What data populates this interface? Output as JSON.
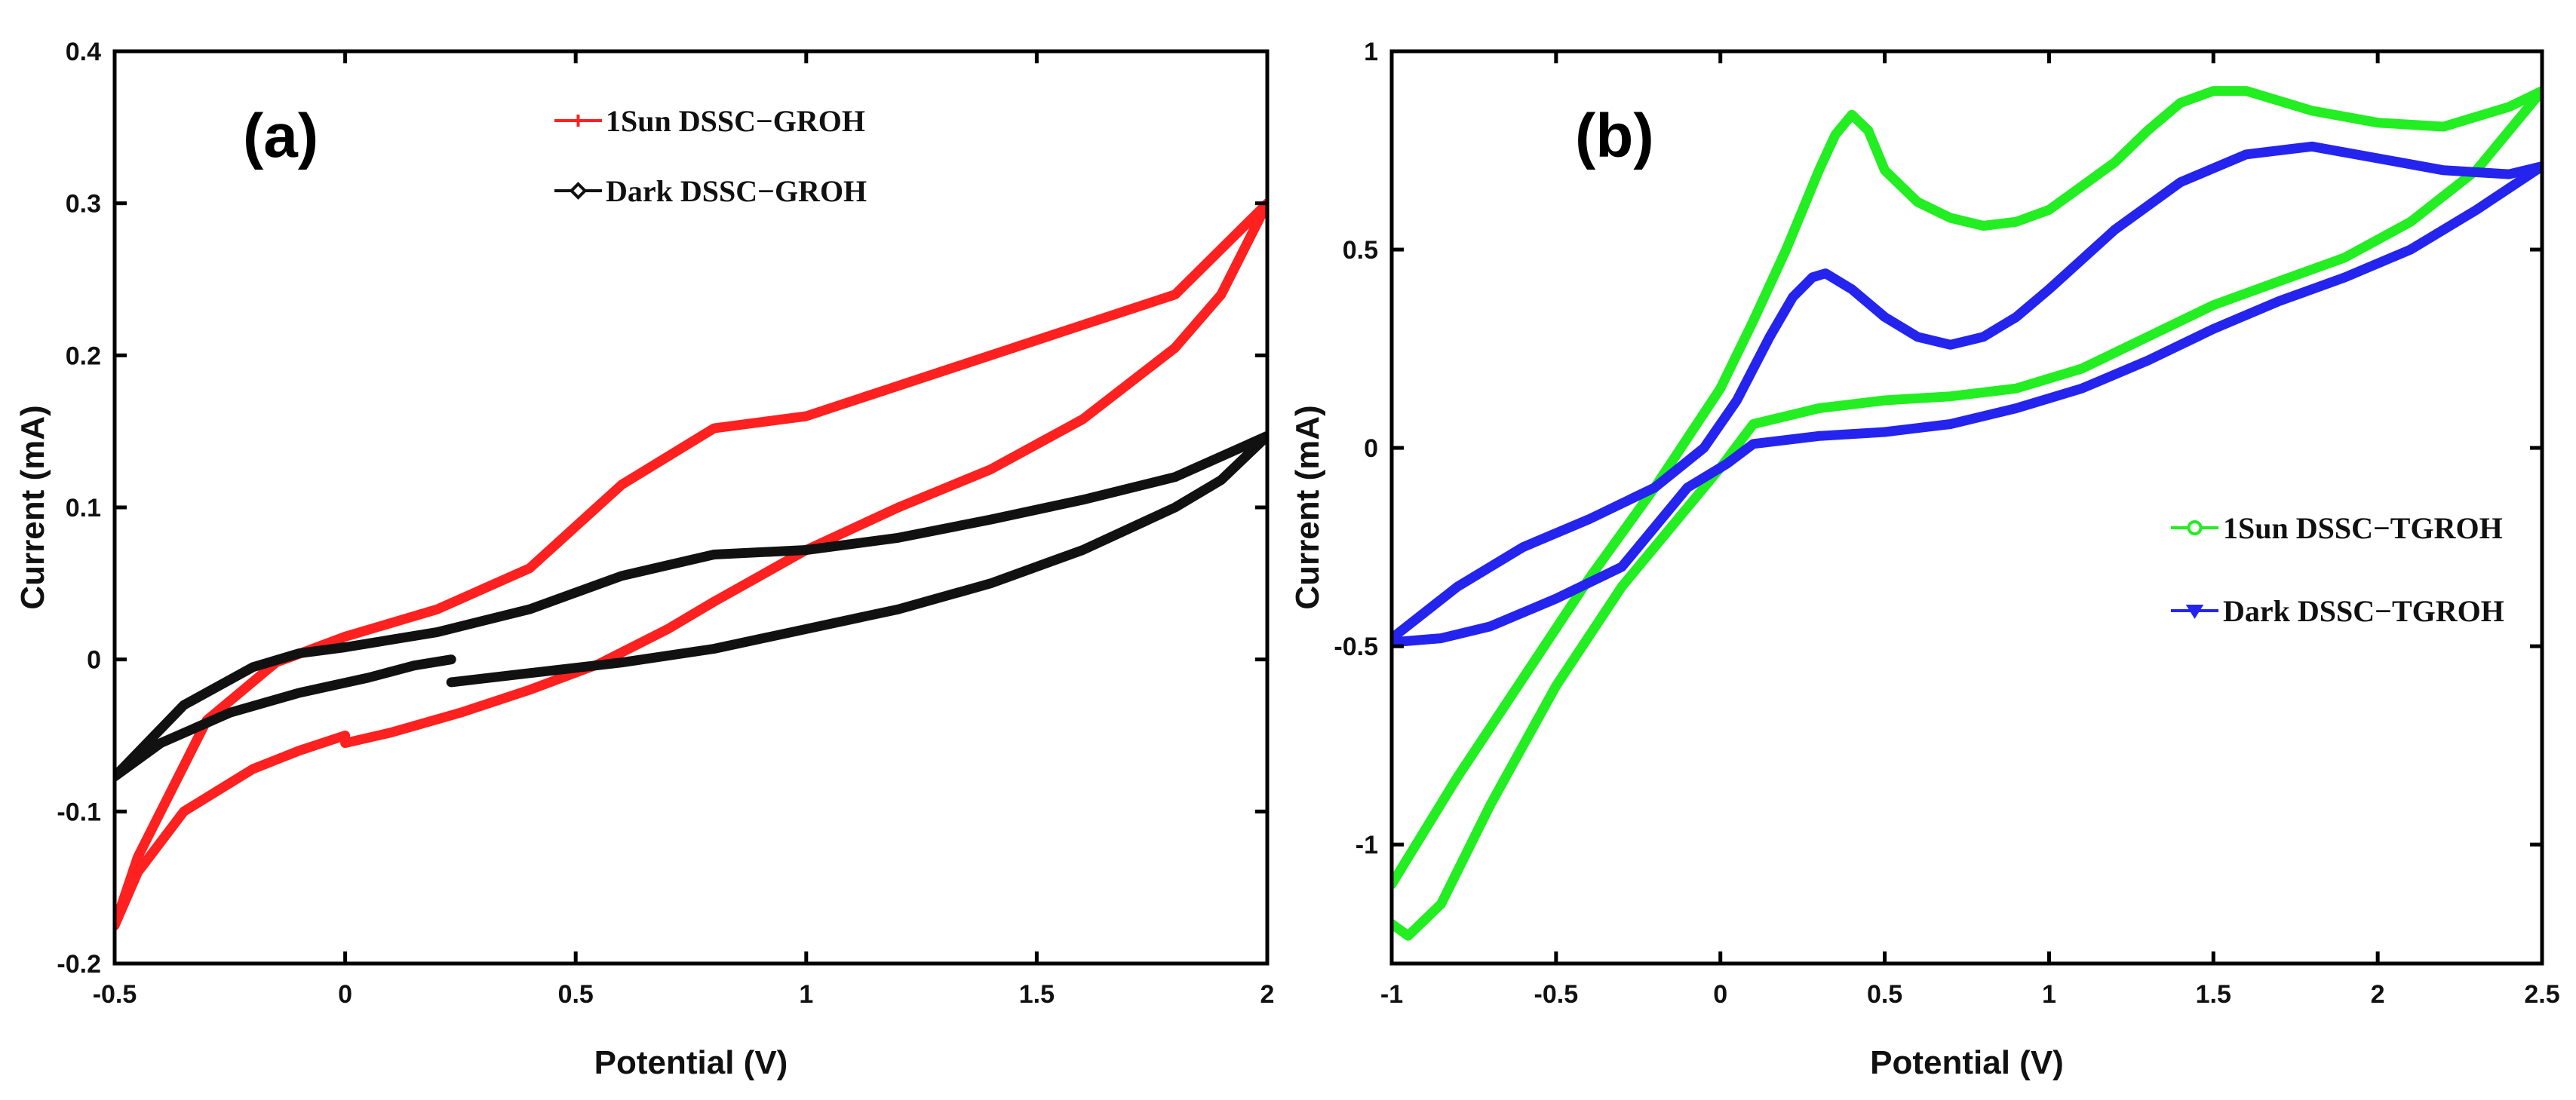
{
  "chart_data": [
    {
      "type": "line",
      "panel_label": "(a)",
      "xlabel": "Potential (V)",
      "ylabel": "Current (mA)",
      "xlim": [
        -0.5,
        2
      ],
      "ylim": [
        -0.2,
        0.4
      ],
      "xticks": [
        -0.5,
        0,
        0.5,
        1,
        1.5,
        2
      ],
      "xtick_labels": [
        "-0.5",
        "0",
        "0.5",
        "1",
        "1.5",
        "2"
      ],
      "yticks": [
        -0.2,
        -0.1,
        0,
        0.1,
        0.2,
        0.3,
        0.4
      ],
      "ytick_labels": [
        "-0.2",
        "-0.1",
        "0",
        "0.1",
        "0.2",
        "0.3",
        "0.4"
      ],
      "legend_position": "top-center",
      "series": [
        {
          "name": "1Sun DSSC−GROH",
          "color": "#ff2020",
          "marker": "plus",
          "x": [
            0.0,
            0.1,
            0.25,
            0.4,
            0.55,
            0.7,
            0.8,
            0.9,
            1.0,
            1.2,
            1.4,
            1.6,
            1.8,
            1.9,
            2.0,
            1.8,
            1.6,
            1.4,
            1.2,
            1.0,
            0.8,
            0.6,
            0.4,
            0.2,
            0.0,
            -0.15,
            -0.3,
            -0.45,
            -0.5,
            -0.45,
            -0.35,
            -0.2,
            -0.1,
            0.0
          ],
          "y": [
            -0.055,
            -0.048,
            -0.035,
            -0.02,
            -0.003,
            0.02,
            0.038,
            0.055,
            0.072,
            0.1,
            0.125,
            0.158,
            0.205,
            0.24,
            0.3,
            0.24,
            0.22,
            0.2,
            0.18,
            0.16,
            0.152,
            0.115,
            0.06,
            0.033,
            0.015,
            -0.002,
            -0.04,
            -0.13,
            -0.175,
            -0.14,
            -0.1,
            -0.072,
            -0.06,
            -0.05
          ]
        },
        {
          "name": "Dark DSSC−GROH",
          "color": "#111111",
          "marker": "diamond",
          "x": [
            0.23,
            0.4,
            0.6,
            0.8,
            1.0,
            1.2,
            1.4,
            1.6,
            1.8,
            1.9,
            2.0,
            1.8,
            1.6,
            1.4,
            1.2,
            1.0,
            0.8,
            0.6,
            0.4,
            0.2,
            0.0,
            -0.1,
            -0.2,
            -0.35,
            -0.5,
            -0.4,
            -0.25,
            -0.1,
            0.05,
            0.15,
            0.23
          ],
          "y": [
            -0.015,
            -0.009,
            -0.002,
            0.007,
            0.02,
            0.033,
            0.05,
            0.072,
            0.1,
            0.118,
            0.147,
            0.12,
            0.105,
            0.092,
            0.08,
            0.072,
            0.069,
            0.055,
            0.033,
            0.018,
            0.008,
            0.004,
            -0.005,
            -0.03,
            -0.077,
            -0.055,
            -0.035,
            -0.022,
            -0.012,
            -0.004,
            0.0
          ]
        }
      ]
    },
    {
      "type": "line",
      "panel_label": "(b)",
      "xlabel": "Potential (V)",
      "ylabel": "Current (mA)",
      "xlim": [
        -1,
        2.5
      ],
      "ylim": [
        -1.3,
        1
      ],
      "xticks": [
        -1,
        -0.5,
        0,
        0.5,
        1,
        1.5,
        2,
        2.5
      ],
      "xtick_labels": [
        "-1",
        "-0.5",
        "0",
        "0.5",
        "1",
        "1.5",
        "2",
        "2.5"
      ],
      "yticks": [
        -1,
        -0.5,
        0,
        0.5,
        1
      ],
      "ytick_labels": [
        "-1",
        "-0.5",
        "0",
        "0.5",
        "1"
      ],
      "legend_position": "center-right",
      "series": [
        {
          "name": "1Sun DSSC−TGROH",
          "color": "#22ee22",
          "marker": "circle",
          "x": [
            -1.0,
            -0.8,
            -0.6,
            -0.4,
            -0.2,
            0.0,
            0.1,
            0.2,
            0.3,
            0.35,
            0.4,
            0.45,
            0.5,
            0.6,
            0.7,
            0.8,
            0.9,
            1.0,
            1.1,
            1.2,
            1.3,
            1.4,
            1.5,
            1.6,
            1.8,
            2.0,
            2.2,
            2.4,
            2.5,
            2.3,
            2.1,
            1.9,
            1.7,
            1.5,
            1.3,
            1.1,
            0.9,
            0.7,
            0.5,
            0.3,
            0.1,
            0.0,
            -0.1,
            -0.3,
            -0.5,
            -0.7,
            -0.85,
            -0.95,
            -1.0
          ],
          "y": [
            -1.1,
            -0.83,
            -0.58,
            -0.33,
            -0.1,
            0.15,
            0.32,
            0.5,
            0.7,
            0.79,
            0.84,
            0.8,
            0.7,
            0.62,
            0.58,
            0.56,
            0.57,
            0.6,
            0.66,
            0.72,
            0.8,
            0.87,
            0.9,
            0.9,
            0.85,
            0.82,
            0.81,
            0.86,
            0.9,
            0.7,
            0.57,
            0.48,
            0.42,
            0.36,
            0.28,
            0.2,
            0.15,
            0.13,
            0.12,
            0.1,
            0.06,
            -0.05,
            -0.15,
            -0.35,
            -0.6,
            -0.9,
            -1.15,
            -1.23,
            -1.2
          ]
        },
        {
          "name": "Dark DSSC−TGROH",
          "color": "#2424ee",
          "marker": "triangle-down",
          "x": [
            -1.0,
            -0.8,
            -0.6,
            -0.4,
            -0.2,
            -0.05,
            0.05,
            0.15,
            0.22,
            0.28,
            0.32,
            0.4,
            0.5,
            0.6,
            0.7,
            0.8,
            0.9,
            1.0,
            1.2,
            1.4,
            1.6,
            1.8,
            2.0,
            2.2,
            2.4,
            2.5,
            2.3,
            2.1,
            1.9,
            1.7,
            1.5,
            1.3,
            1.1,
            0.9,
            0.7,
            0.5,
            0.3,
            0.1,
            0.02,
            -0.1,
            -0.3,
            -0.5,
            -0.7,
            -0.85,
            -1.0
          ],
          "y": [
            -0.48,
            -0.35,
            -0.25,
            -0.18,
            -0.1,
            0.0,
            0.12,
            0.28,
            0.38,
            0.43,
            0.44,
            0.4,
            0.33,
            0.28,
            0.26,
            0.28,
            0.33,
            0.4,
            0.55,
            0.67,
            0.74,
            0.76,
            0.73,
            0.7,
            0.69,
            0.71,
            0.6,
            0.5,
            0.43,
            0.37,
            0.3,
            0.22,
            0.15,
            0.1,
            0.06,
            0.04,
            0.03,
            0.01,
            -0.04,
            -0.1,
            -0.3,
            -0.38,
            -0.45,
            -0.48,
            -0.49
          ]
        }
      ]
    }
  ]
}
